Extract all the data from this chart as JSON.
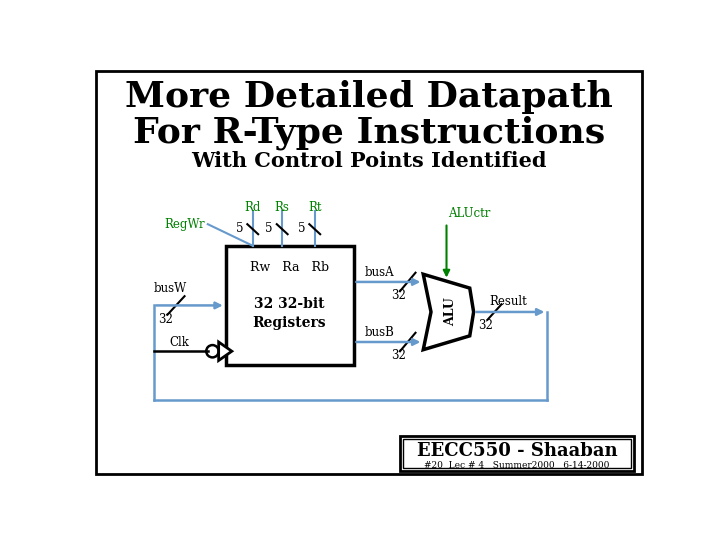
{
  "title_line1": "More Detailed Datapath",
  "title_line2": "For R-Type Instructions",
  "subtitle": "With Control Points Identified",
  "green_color": "#008000",
  "blue_color": "#6699CC",
  "black_color": "#000000",
  "bg_color": "#ffffff",
  "eecc_text": "EECC550 - Shaaban",
  "bottom_text": "#20  Lec # 4   Summer2000   6-14-2000"
}
